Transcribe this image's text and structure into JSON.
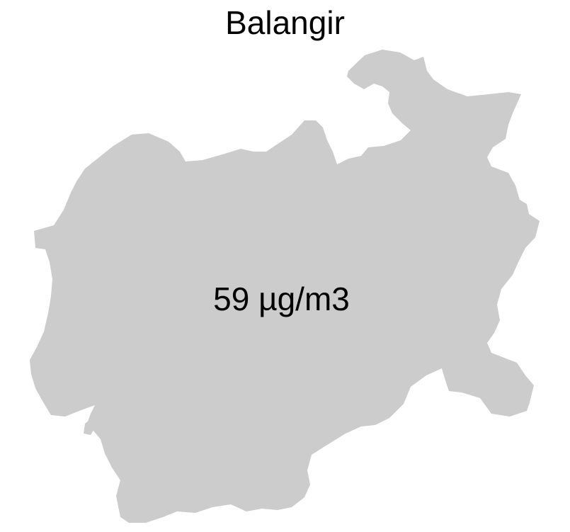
{
  "map": {
    "title": "Balangir",
    "region_value": "59 µg/m3",
    "region_fill": "#cccccc",
    "background": "#ffffff",
    "text_color": "#000000"
  }
}
